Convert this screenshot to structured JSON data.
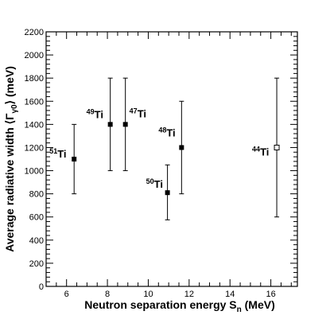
{
  "chart_data": {
    "type": "scatter",
    "xlabel_main": "Neutron separation energy S",
    "xlabel_sub": "n",
    "xlabel_unit": " (MeV)",
    "ylabel_main": "Average radiative width ⟨Γ",
    "ylabel_sub": "γ0",
    "ylabel_unit": "⟩ (meV)",
    "xlim": [
      5,
      17.3
    ],
    "ylim": [
      0,
      2200
    ],
    "x_ticks": [
      6,
      8,
      10,
      12,
      14,
      16
    ],
    "y_ticks": [
      0,
      200,
      400,
      600,
      800,
      1000,
      1200,
      1400,
      1600,
      1800,
      2000,
      2200
    ],
    "points": [
      {
        "mass": "51",
        "element": "Ti",
        "x": 6.37,
        "y": 1100,
        "err_low": 800,
        "err_high": 1400,
        "marker": "filled"
      },
      {
        "mass": "49",
        "element": "Ti",
        "x": 8.14,
        "y": 1400,
        "err_low": 1000,
        "err_high": 1800,
        "marker": "filled"
      },
      {
        "mass": "47",
        "element": "Ti",
        "x": 8.88,
        "y": 1400,
        "err_low": 1000,
        "err_high": 1800,
        "marker": "filled"
      },
      {
        "mass": "50",
        "element": "Ti",
        "x": 10.94,
        "y": 810,
        "err_low": 575,
        "err_high": 1050,
        "marker": "filled"
      },
      {
        "mass": "48",
        "element": "Ti",
        "x": 11.63,
        "y": 1200,
        "err_low": 800,
        "err_high": 1600,
        "marker": "filled"
      },
      {
        "mass": "44",
        "element": "Ti",
        "x": 16.29,
        "y": 1200,
        "err_low": 600,
        "err_high": 1800,
        "marker": "open"
      }
    ]
  }
}
